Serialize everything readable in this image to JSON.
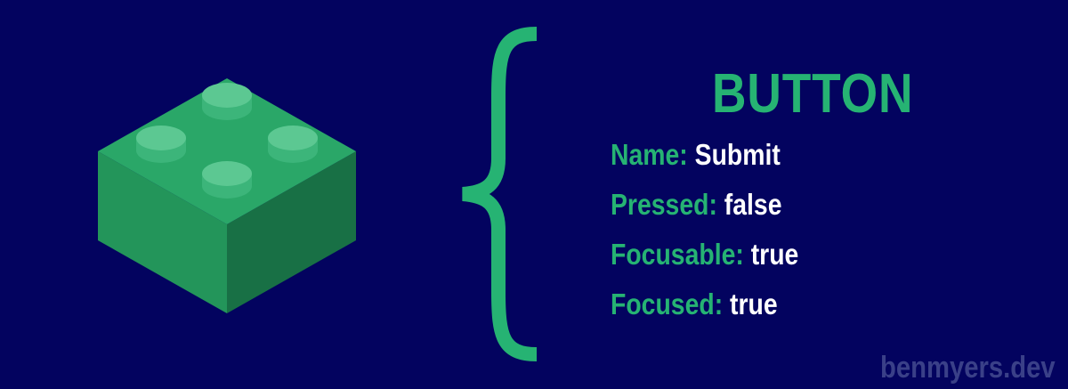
{
  "heading": "BUTTON",
  "properties": [
    {
      "key": "Name:",
      "value": "Submit"
    },
    {
      "key": "Pressed:",
      "value": "false"
    },
    {
      "key": "Focusable:",
      "value": "true"
    },
    {
      "key": "Focused:",
      "value": "true"
    }
  ],
  "watermark": "benmyers.dev",
  "icons": {
    "brick": "lego-brick-icon",
    "brace": "curly-brace-icon"
  },
  "colors": {
    "background": "#03035f",
    "accent_green": "#26b373",
    "value_text": "#ffffff",
    "watermark": "#3a4088"
  }
}
